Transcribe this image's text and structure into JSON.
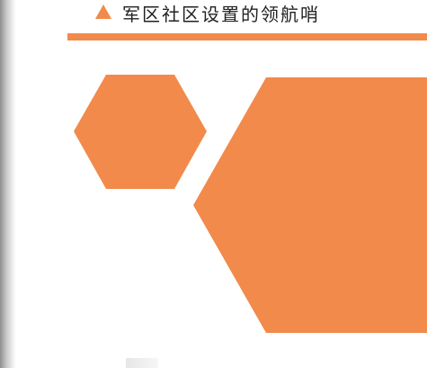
{
  "header": {
    "title": "军区社区设置的领航哨",
    "accent_color": "#f28a4b",
    "marker_icon": "triangle-icon"
  },
  "decoration": {
    "shape_color": "#f28a4b",
    "shapes": [
      "hexagon",
      "hexagon"
    ]
  }
}
